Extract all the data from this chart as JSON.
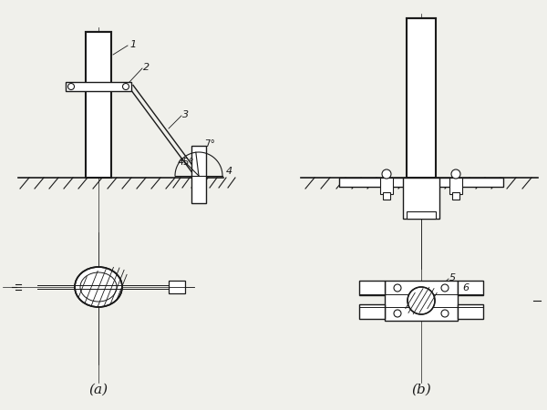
{
  "bg_color": "#f0f0eb",
  "line_color": "#1a1a1a",
  "label_a": "(a)",
  "label_b": "(b)",
  "fig_width": 6.0,
  "fig_height": 4.5,
  "dpi": 100
}
